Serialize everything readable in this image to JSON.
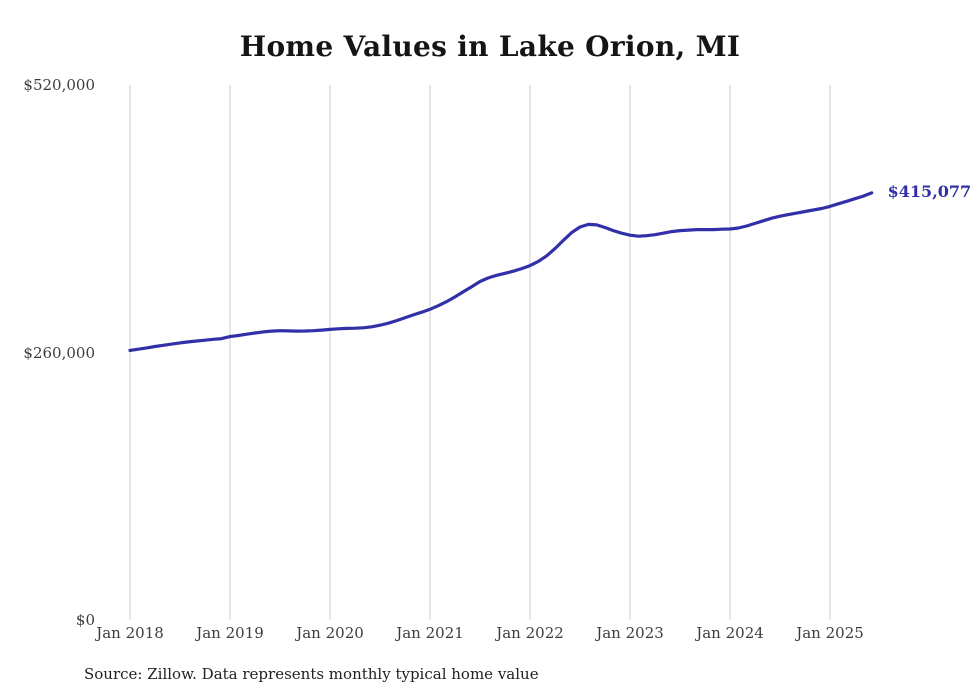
{
  "chart_data": {
    "type": "line",
    "title": "Home Values in Lake Orion, MI",
    "series_name": "Monthly typical home value",
    "source_note": "Source: Zillow. Data represents monthly typical home value",
    "end_label": "$415,077",
    "end_value": 415077,
    "line_color": "#3230a8",
    "grid": "vertical-only",
    "legend": "none",
    "ylim": [
      0,
      520000
    ],
    "y_ticks": [
      {
        "label": "$0",
        "value": 0
      },
      {
        "label": "$260,000",
        "value": 260000
      },
      {
        "label": "$520,000",
        "value": 520000
      }
    ],
    "x_ticks": [
      {
        "label": "Jan 2018",
        "month_index": 0
      },
      {
        "label": "Jan 2019",
        "month_index": 12
      },
      {
        "label": "Jan 2020",
        "month_index": 24
      },
      {
        "label": "Jan 2021",
        "month_index": 36
      },
      {
        "label": "Jan 2022",
        "month_index": 48
      },
      {
        "label": "Jan 2023",
        "month_index": 60
      },
      {
        "label": "Jan 2024",
        "month_index": 72
      },
      {
        "label": "Jan 2025",
        "month_index": 84
      }
    ],
    "x": [
      "2018-01",
      "2018-02",
      "2018-03",
      "2018-04",
      "2018-05",
      "2018-06",
      "2018-07",
      "2018-08",
      "2018-09",
      "2018-10",
      "2018-11",
      "2018-12",
      "2019-01",
      "2019-02",
      "2019-03",
      "2019-04",
      "2019-05",
      "2019-06",
      "2019-07",
      "2019-08",
      "2019-09",
      "2019-10",
      "2019-11",
      "2019-12",
      "2020-01",
      "2020-02",
      "2020-03",
      "2020-04",
      "2020-05",
      "2020-06",
      "2020-07",
      "2020-08",
      "2020-09",
      "2020-10",
      "2020-11",
      "2020-12",
      "2021-01",
      "2021-02",
      "2021-03",
      "2021-04",
      "2021-05",
      "2021-06",
      "2021-07",
      "2021-08",
      "2021-09",
      "2021-10",
      "2021-11",
      "2021-12",
      "2022-01",
      "2022-02",
      "2022-03",
      "2022-04",
      "2022-05",
      "2022-06",
      "2022-07",
      "2022-08",
      "2022-09",
      "2022-10",
      "2022-11",
      "2022-12",
      "2023-01",
      "2023-02",
      "2023-03",
      "2023-04",
      "2023-05",
      "2023-06",
      "2023-07",
      "2023-08",
      "2023-09",
      "2023-10",
      "2023-11",
      "2023-12",
      "2024-01",
      "2024-02",
      "2024-03",
      "2024-04",
      "2024-05",
      "2024-06",
      "2024-07",
      "2024-08",
      "2024-09",
      "2024-10",
      "2024-11",
      "2024-12",
      "2025-01",
      "2025-02",
      "2025-03",
      "2025-04",
      "2025-05",
      "2025-06"
    ],
    "values": [
      262000,
      263200,
      264500,
      265800,
      267000,
      268200,
      269300,
      270300,
      271200,
      272000,
      272800,
      273500,
      275500,
      276500,
      277800,
      279000,
      280000,
      280800,
      281200,
      281000,
      280800,
      280900,
      281200,
      281800,
      282500,
      283000,
      283400,
      283600,
      284000,
      285000,
      286500,
      288500,
      291000,
      293800,
      296500,
      299200,
      302000,
      305500,
      309500,
      314000,
      319000,
      324000,
      329000,
      332500,
      335000,
      337000,
      339000,
      341500,
      344500,
      348500,
      354000,
      361000,
      369000,
      376500,
      382000,
      384500,
      384000,
      381500,
      378500,
      376000,
      374000,
      373000,
      373500,
      374500,
      376000,
      377500,
      378500,
      379000,
      379500,
      379500,
      379500,
      379800,
      380000,
      381000,
      383000,
      385500,
      388000,
      390500,
      392500,
      394000,
      395500,
      397000,
      398500,
      400000,
      402000,
      404500,
      407000,
      409500,
      412000,
      415077
    ]
  }
}
